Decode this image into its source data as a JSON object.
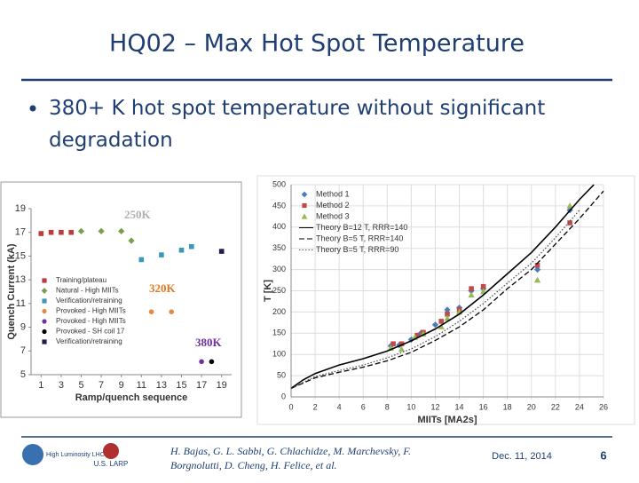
{
  "slide": {
    "title": "HQ02 – Max Hot Spot Temperature",
    "bullet": "380+ K hot spot temperature without significant degradation"
  },
  "chart_data": [
    {
      "type": "scatter",
      "xlabel": "Ramp/quench sequence",
      "ylabel": "Quench Current (kA)",
      "xlim": [
        0,
        20
      ],
      "xticks": [
        1,
        3,
        5,
        7,
        9,
        11,
        13,
        15,
        17,
        19
      ],
      "ylim": [
        5,
        19
      ],
      "yticks": [
        5,
        7,
        9,
        11,
        13,
        15,
        17,
        19
      ],
      "grid": false,
      "legend": "lower left",
      "annotations": [
        {
          "text": "250K",
          "color": "#b0b0b0"
        },
        {
          "text": "320K",
          "color": "#e07b22"
        },
        {
          "text": "380K",
          "color": "#7030a0"
        }
      ],
      "series": [
        {
          "name": "Training/plateau",
          "color": "#c0393b",
          "marker": "square",
          "x": [
            1,
            2,
            3,
            4
          ],
          "values": [
            16.9,
            17,
            17,
            17
          ]
        },
        {
          "name": "Natural - High MIITs",
          "color": "#77a04a",
          "marker": "diamond",
          "x": [
            5,
            7,
            9,
            10
          ],
          "values": [
            17.1,
            17.1,
            17.1,
            16.3
          ]
        },
        {
          "name": "Verification/retraining",
          "color": "#3a9ab5",
          "marker": "square",
          "x": [
            11,
            13,
            15,
            16
          ],
          "values": [
            14.7,
            15.1,
            15.5,
            15.8
          ]
        },
        {
          "name": "Provoked - High MIITs",
          "color": "#e58a43",
          "marker": "circle",
          "x": [
            12,
            14
          ],
          "values": [
            10.3,
            10.3
          ]
        },
        {
          "name": "Provoked - High MIITs",
          "color": "#7030a0",
          "marker": "circle",
          "x": [
            17
          ],
          "values": [
            6.1
          ]
        },
        {
          "name": "Provoked - SH coil 17",
          "color": "#000000",
          "marker": "circle",
          "x": [
            18
          ],
          "values": [
            6.1
          ]
        },
        {
          "name": "Verification/retraining",
          "color": "#1f1f4f",
          "marker": "square",
          "x": [
            19
          ],
          "values": [
            15.4
          ]
        }
      ]
    },
    {
      "type": "scatter",
      "xlabel": "MIITs [MA2s]",
      "ylabel": "T [K]",
      "xlim": [
        0,
        26
      ],
      "xticks": [
        0,
        2,
        4,
        6,
        8,
        10,
        12,
        14,
        16,
        18,
        20,
        22,
        24,
        26
      ],
      "ylim": [
        0,
        500
      ],
      "yticks": [
        0,
        50,
        100,
        150,
        200,
        250,
        300,
        350,
        400,
        450,
        500
      ],
      "grid": true,
      "legend": "upper left",
      "series": [
        {
          "name": "Method 1",
          "color": "#4a7ebb",
          "marker": "diamond",
          "x": [
            8.3,
            9,
            10,
            10.8,
            12,
            13,
            14,
            15,
            16,
            20.5,
            23.2
          ],
          "values": [
            120,
            122,
            135,
            150,
            170,
            205,
            210,
            250,
            255,
            300,
            440
          ]
        },
        {
          "name": "Method 2",
          "color": "#be4b48",
          "marker": "square",
          "x": [
            8.5,
            9.2,
            10.5,
            11,
            12.5,
            13,
            14,
            15,
            16,
            20.5,
            23.2
          ],
          "values": [
            125,
            125,
            145,
            152,
            178,
            195,
            205,
            255,
            260,
            310,
            410
          ]
        },
        {
          "name": "Method 3",
          "color": "#98b954",
          "marker": "triangle",
          "x": [
            8.3,
            9.2,
            10.3,
            11,
            12.5,
            13,
            14,
            15,
            16,
            20.5,
            23.2
          ],
          "values": [
            115,
            112,
            140,
            148,
            165,
            185,
            200,
            240,
            248,
            275,
            450
          ]
        },
        {
          "name": "Theory B=12 T, RRR=140",
          "color": "#000000",
          "marker": "line",
          "style": "solid",
          "x": [
            0,
            1,
            2,
            4,
            6,
            8,
            10,
            12,
            14,
            16,
            18,
            20,
            22,
            24,
            25.2
          ],
          "values": [
            20,
            40,
            55,
            75,
            90,
            108,
            132,
            160,
            195,
            240,
            290,
            340,
            400,
            465,
            500
          ]
        },
        {
          "name": "Theory B=5 T, RRR=140",
          "color": "#000000",
          "marker": "line",
          "style": "dashed",
          "x": [
            0,
            2,
            4,
            6,
            8,
            10,
            12,
            14,
            16,
            18,
            20,
            22,
            24,
            26
          ],
          "values": [
            20,
            45,
            58,
            70,
            85,
            105,
            133,
            165,
            205,
            255,
            300,
            360,
            420,
            485
          ]
        },
        {
          "name": "Theory B=5 T, RRR=90",
          "color": "#555555",
          "marker": "line",
          "style": "dotted",
          "x": [
            0,
            2,
            4,
            6,
            8,
            10,
            12,
            14,
            16,
            18,
            20,
            22,
            24
          ],
          "values": [
            20,
            48,
            62,
            75,
            92,
            113,
            142,
            178,
            220,
            268,
            315,
            375,
            440
          ]
        }
      ]
    }
  ],
  "footer": {
    "logo1": "High Luminosity LHC",
    "logo2": "U.S. LARP",
    "authors": "H. Bajas, G. L. Sabbi, G. Chlachidze, M. Marchevsky, F. Borgnolutti, D. Cheng, H. Felice,  et al.",
    "date": "Dec. 11, 2014",
    "page": "6"
  }
}
